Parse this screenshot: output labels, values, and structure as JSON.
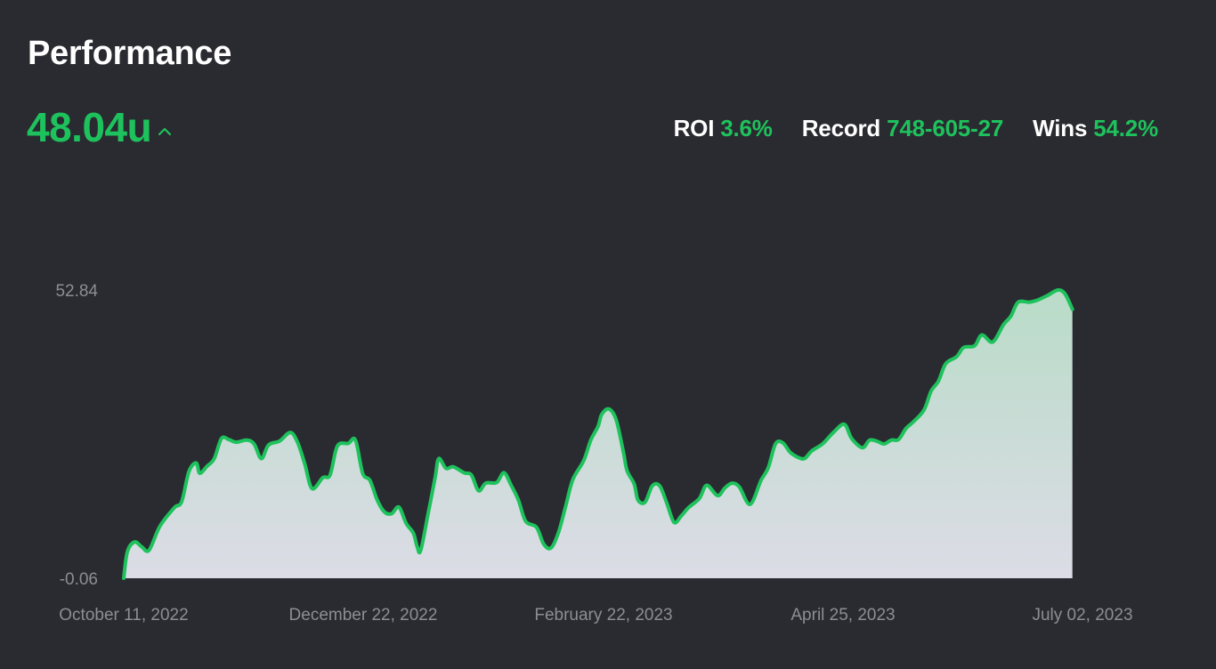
{
  "header": {
    "title": "Performance",
    "total_units": "48.04u",
    "trend_icon": "chevron-up-icon"
  },
  "stats": [
    {
      "label": "ROI",
      "value": "3.6%"
    },
    {
      "label": "Record",
      "value": "748-605-27"
    },
    {
      "label": "Wins",
      "value": "54.2%"
    }
  ],
  "colors": {
    "accent": "#1ec25c",
    "background": "#2a2a31",
    "tick_text": "#8d8d93",
    "area_top": "#b9dcc8",
    "area_bottom": "#dcdce6"
  },
  "chart_data": {
    "type": "area",
    "title": "",
    "xlabel": "",
    "ylabel": "",
    "ylim": [
      -0.06,
      52.84
    ],
    "y_tick_labels": [
      "52.84",
      "-0.06"
    ],
    "x_tick_labels": [
      "October 11, 2022",
      "December 22, 2022",
      "February 22, 2023",
      "April 25, 2023",
      "July 02, 2023"
    ],
    "x_range": [
      "2022-10-11",
      "2023-07-05"
    ],
    "grid": false,
    "legend": "none",
    "series": [
      {
        "points": [
          [
            "2022-10-11",
            -0.06
          ],
          [
            "2022-10-12",
            4.8
          ],
          [
            "2022-10-14",
            6.6
          ],
          [
            "2022-10-16",
            5.7
          ],
          [
            "2022-10-18",
            5.1
          ],
          [
            "2022-10-21",
            9.5
          ],
          [
            "2022-10-25",
            12.9
          ],
          [
            "2022-10-27",
            14.0
          ],
          [
            "2022-10-29",
            19.5
          ],
          [
            "2022-10-31",
            21.1
          ],
          [
            "2022-11-01",
            19.2
          ],
          [
            "2022-11-03",
            20.5
          ],
          [
            "2022-11-05",
            21.9
          ],
          [
            "2022-11-07",
            25.6
          ],
          [
            "2022-11-09",
            25.4
          ],
          [
            "2022-11-11",
            24.9
          ],
          [
            "2022-11-14",
            25.3
          ],
          [
            "2022-11-16",
            24.6
          ],
          [
            "2022-11-18",
            21.9
          ],
          [
            "2022-11-20",
            24.4
          ],
          [
            "2022-11-23",
            25.1
          ],
          [
            "2022-11-26",
            26.7
          ],
          [
            "2022-11-28",
            24.9
          ],
          [
            "2022-11-30",
            20.9
          ],
          [
            "2022-12-02",
            16.4
          ],
          [
            "2022-12-05",
            18.4
          ],
          [
            "2022-12-07",
            18.9
          ],
          [
            "2022-12-09",
            24.2
          ],
          [
            "2022-12-12",
            24.7
          ],
          [
            "2022-12-14",
            25.3
          ],
          [
            "2022-12-16",
            19.2
          ],
          [
            "2022-12-18",
            17.9
          ],
          [
            "2022-12-20",
            14.3
          ],
          [
            "2022-12-22",
            12.1
          ],
          [
            "2022-12-24",
            11.8
          ],
          [
            "2022-12-26",
            13.0
          ],
          [
            "2022-12-28",
            10.0
          ],
          [
            "2022-12-30",
            8.2
          ],
          [
            "2022-12-31",
            5.8
          ],
          [
            "2023-01-01",
            5.0
          ],
          [
            "2023-01-03",
            11.6
          ],
          [
            "2023-01-05",
            18.4
          ],
          [
            "2023-01-06",
            21.9
          ],
          [
            "2023-01-08",
            20.1
          ],
          [
            "2023-01-10",
            20.4
          ],
          [
            "2023-01-13",
            19.3
          ],
          [
            "2023-01-15",
            18.9
          ],
          [
            "2023-01-17",
            16.0
          ],
          [
            "2023-01-19",
            17.4
          ],
          [
            "2023-01-22",
            17.5
          ],
          [
            "2023-01-24",
            19.3
          ],
          [
            "2023-01-26",
            17.0
          ],
          [
            "2023-01-28",
            14.3
          ],
          [
            "2023-01-30",
            10.4
          ],
          [
            "2023-02-02",
            9.3
          ],
          [
            "2023-02-04",
            6.2
          ],
          [
            "2023-02-06",
            5.5
          ],
          [
            "2023-02-08",
            8.2
          ],
          [
            "2023-02-10",
            13.0
          ],
          [
            "2023-02-12",
            18.0
          ],
          [
            "2023-02-15",
            21.5
          ],
          [
            "2023-02-17",
            25.3
          ],
          [
            "2023-02-19",
            27.8
          ],
          [
            "2023-02-20",
            30.0
          ],
          [
            "2023-02-22",
            31.0
          ],
          [
            "2023-02-24",
            29.0
          ],
          [
            "2023-02-26",
            23.1
          ],
          [
            "2023-02-27",
            19.7
          ],
          [
            "2023-03-01",
            17.2
          ],
          [
            "2023-03-02",
            14.3
          ],
          [
            "2023-03-04",
            13.9
          ],
          [
            "2023-03-06",
            16.9
          ],
          [
            "2023-03-08",
            16.9
          ],
          [
            "2023-03-10",
            13.7
          ],
          [
            "2023-03-12",
            10.2
          ],
          [
            "2023-03-14",
            11.4
          ],
          [
            "2023-03-16",
            12.9
          ],
          [
            "2023-03-19",
            14.6
          ],
          [
            "2023-03-21",
            17.0
          ],
          [
            "2023-03-24",
            15.1
          ],
          [
            "2023-03-26",
            16.5
          ],
          [
            "2023-03-28",
            17.4
          ],
          [
            "2023-03-30",
            16.7
          ],
          [
            "2023-04-02",
            13.5
          ],
          [
            "2023-04-05",
            17.9
          ],
          [
            "2023-04-07",
            20.2
          ],
          [
            "2023-04-09",
            24.6
          ],
          [
            "2023-04-11",
            24.8
          ],
          [
            "2023-04-13",
            23.1
          ],
          [
            "2023-04-15",
            22.2
          ],
          [
            "2023-04-17",
            21.9
          ],
          [
            "2023-04-19",
            23.3
          ],
          [
            "2023-04-22",
            24.6
          ],
          [
            "2023-04-25",
            26.7
          ],
          [
            "2023-04-28",
            28.2
          ],
          [
            "2023-04-30",
            25.6
          ],
          [
            "2023-05-03",
            23.9
          ],
          [
            "2023-05-05",
            25.3
          ],
          [
            "2023-05-07",
            25.1
          ],
          [
            "2023-05-09",
            24.6
          ],
          [
            "2023-05-11",
            25.3
          ],
          [
            "2023-05-13",
            25.4
          ],
          [
            "2023-05-15",
            27.4
          ],
          [
            "2023-05-17",
            28.6
          ],
          [
            "2023-05-20",
            30.8
          ],
          [
            "2023-05-22",
            34.3
          ],
          [
            "2023-05-24",
            36.1
          ],
          [
            "2023-05-26",
            39.3
          ],
          [
            "2023-05-29",
            40.6
          ],
          [
            "2023-05-31",
            42.3
          ],
          [
            "2023-06-03",
            42.6
          ],
          [
            "2023-06-05",
            44.6
          ],
          [
            "2023-06-08",
            43.3
          ],
          [
            "2023-06-11",
            46.5
          ],
          [
            "2023-06-13",
            48.0
          ],
          [
            "2023-06-15",
            50.6
          ],
          [
            "2023-06-18",
            50.6
          ],
          [
            "2023-06-20",
            50.9
          ],
          [
            "2023-06-23",
            51.8
          ],
          [
            "2023-06-26",
            52.84
          ],
          [
            "2023-06-28",
            52.1
          ],
          [
            "2023-06-30",
            49.3
          ]
        ]
      }
    ]
  }
}
